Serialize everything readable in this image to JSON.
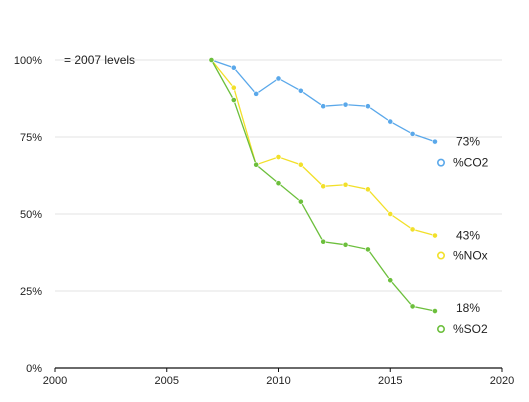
{
  "chart_data": {
    "type": "line",
    "annotation": "= 2007 levels",
    "xlim": [
      2000,
      2020
    ],
    "ylim": [
      0,
      100
    ],
    "x_ticks": [
      "2000",
      "2005",
      "2010",
      "2015",
      "2020"
    ],
    "y_ticks": [
      "0%",
      "25%",
      "50%",
      "75%",
      "100%"
    ],
    "grid": true,
    "legend": "right, next to series ends",
    "x": [
      2007,
      2008,
      2009,
      2010,
      2011,
      2012,
      2013,
      2014,
      2015,
      2016,
      2017
    ],
    "series": [
      {
        "name": "%CO2",
        "end_label": "73%",
        "color": "#5aa8ea",
        "values": [
          100,
          97.5,
          89,
          94,
          90,
          85,
          85.5,
          85,
          80,
          76,
          73.5
        ]
      },
      {
        "name": "%NOx",
        "end_label": "43%",
        "color": "#f2e02a",
        "values": [
          100,
          91,
          66,
          68.5,
          66,
          59,
          59.5,
          58,
          50,
          45,
          43
        ]
      },
      {
        "name": "%SO2",
        "end_label": "18%",
        "color": "#6cbf3c",
        "values": [
          100,
          87,
          66,
          60,
          54,
          41,
          40,
          38.5,
          28.5,
          20,
          18.5
        ]
      }
    ]
  }
}
